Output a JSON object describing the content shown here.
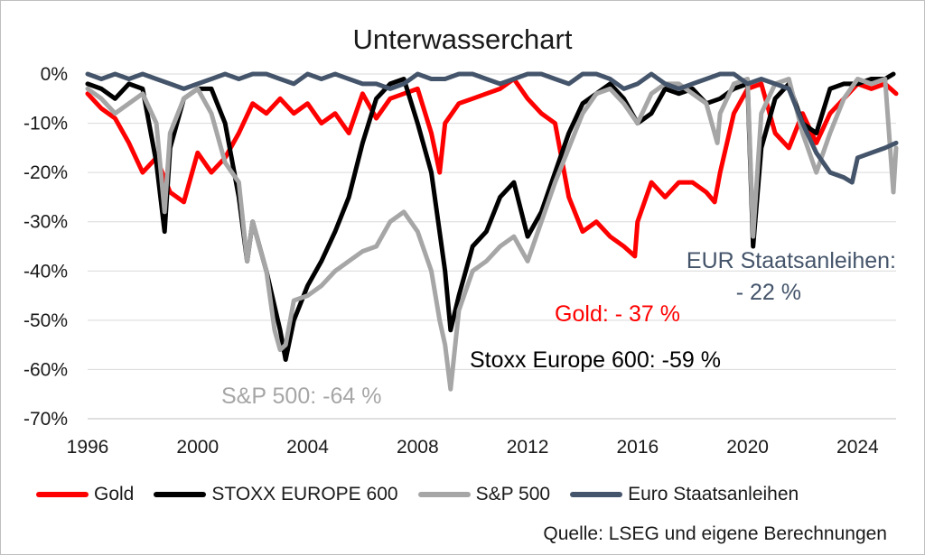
{
  "chart_data": {
    "type": "line",
    "title": "Unterwasserchart",
    "xlabel": "",
    "ylabel": "",
    "xlim": [
      1996,
      2025.4
    ],
    "ylim": [
      -70,
      0
    ],
    "x_ticks": [
      "1996",
      "2000",
      "2004",
      "2008",
      "2012",
      "2016",
      "2020",
      "2024"
    ],
    "y_ticks": [
      "0%",
      "-10%",
      "-20%",
      "-30%",
      "-40%",
      "-50%",
      "-60%",
      "-70%"
    ],
    "grid": "horizontal",
    "legend_position": "bottom",
    "series": [
      {
        "name": "Gold",
        "color": "#ff0000",
        "points": [
          [
            1996,
            -4
          ],
          [
            1996.5,
            -7
          ],
          [
            1997,
            -9
          ],
          [
            1997.5,
            -14
          ],
          [
            1998,
            -20
          ],
          [
            1998.5,
            -17
          ],
          [
            1999,
            -24
          ],
          [
            1999.5,
            -26
          ],
          [
            2000,
            -16
          ],
          [
            2000.5,
            -20
          ],
          [
            2001,
            -17
          ],
          [
            2001.5,
            -12
          ],
          [
            2002,
            -6
          ],
          [
            2002.5,
            -8
          ],
          [
            2003,
            -5
          ],
          [
            2003.5,
            -8
          ],
          [
            2004,
            -6
          ],
          [
            2004.5,
            -10
          ],
          [
            2005,
            -8
          ],
          [
            2005.5,
            -12
          ],
          [
            2006,
            -4
          ],
          [
            2006.5,
            -9
          ],
          [
            2007,
            -5
          ],
          [
            2007.5,
            -4
          ],
          [
            2008,
            -3
          ],
          [
            2008.5,
            -12
          ],
          [
            2008.8,
            -20
          ],
          [
            2009,
            -10
          ],
          [
            2009.5,
            -6
          ],
          [
            2010,
            -5
          ],
          [
            2010.5,
            -4
          ],
          [
            2011,
            -3
          ],
          [
            2011.5,
            -1
          ],
          [
            2012,
            -5
          ],
          [
            2012.5,
            -8
          ],
          [
            2013,
            -10
          ],
          [
            2013.5,
            -25
          ],
          [
            2014,
            -32
          ],
          [
            2014.5,
            -30
          ],
          [
            2015,
            -33
          ],
          [
            2015.5,
            -35
          ],
          [
            2015.9,
            -37
          ],
          [
            2016,
            -30
          ],
          [
            2016.5,
            -22
          ],
          [
            2017,
            -25
          ],
          [
            2017.5,
            -22
          ],
          [
            2018,
            -22
          ],
          [
            2018.5,
            -24
          ],
          [
            2018.8,
            -26
          ],
          [
            2019,
            -20
          ],
          [
            2019.5,
            -8
          ],
          [
            2020,
            -3
          ],
          [
            2020.5,
            -2
          ],
          [
            2021,
            -12
          ],
          [
            2021.5,
            -15
          ],
          [
            2022,
            -8
          ],
          [
            2022.5,
            -14
          ],
          [
            2023,
            -8
          ],
          [
            2023.5,
            -5
          ],
          [
            2024,
            -2
          ],
          [
            2024.5,
            -3
          ],
          [
            2025,
            -2
          ],
          [
            2025.4,
            -4
          ]
        ]
      },
      {
        "name": "STOXX EUROPE 600",
        "color": "#000000",
        "points": [
          [
            1996,
            -2
          ],
          [
            1996.5,
            -3
          ],
          [
            1997,
            -5
          ],
          [
            1997.5,
            -2
          ],
          [
            1998,
            -3
          ],
          [
            1998.5,
            -18
          ],
          [
            1998.8,
            -32
          ],
          [
            1999,
            -15
          ],
          [
            1999.5,
            -5
          ],
          [
            2000,
            -3
          ],
          [
            2000.5,
            -3
          ],
          [
            2001,
            -10
          ],
          [
            2001.5,
            -25
          ],
          [
            2001.8,
            -38
          ],
          [
            2002,
            -30
          ],
          [
            2002.5,
            -40
          ],
          [
            2003,
            -52
          ],
          [
            2003.2,
            -58
          ],
          [
            2003.5,
            -50
          ],
          [
            2004,
            -43
          ],
          [
            2004.5,
            -38
          ],
          [
            2005,
            -32
          ],
          [
            2005.5,
            -25
          ],
          [
            2006,
            -14
          ],
          [
            2006.5,
            -5
          ],
          [
            2007,
            -2
          ],
          [
            2007.5,
            -1
          ],
          [
            2008,
            -10
          ],
          [
            2008.5,
            -20
          ],
          [
            2009,
            -40
          ],
          [
            2009.2,
            -52
          ],
          [
            2009.5,
            -45
          ],
          [
            2010,
            -35
          ],
          [
            2010.5,
            -32
          ],
          [
            2011,
            -25
          ],
          [
            2011.5,
            -22
          ],
          [
            2012,
            -33
          ],
          [
            2012.5,
            -28
          ],
          [
            2013,
            -20
          ],
          [
            2013.5,
            -12
          ],
          [
            2014,
            -6
          ],
          [
            2014.5,
            -4
          ],
          [
            2015,
            -2
          ],
          [
            2015.5,
            -5
          ],
          [
            2016,
            -10
          ],
          [
            2016.5,
            -8
          ],
          [
            2017,
            -3
          ],
          [
            2017.5,
            -4
          ],
          [
            2018,
            -3
          ],
          [
            2018.5,
            -6
          ],
          [
            2019,
            -5
          ],
          [
            2019.5,
            -3
          ],
          [
            2020,
            -2
          ],
          [
            2020.2,
            -35
          ],
          [
            2020.5,
            -15
          ],
          [
            2021,
            -5
          ],
          [
            2021.5,
            -2
          ],
          [
            2022,
            -10
          ],
          [
            2022.5,
            -12
          ],
          [
            2023,
            -3
          ],
          [
            2023.5,
            -2
          ],
          [
            2024,
            -2
          ],
          [
            2024.5,
            -1
          ],
          [
            2025,
            -1
          ],
          [
            2025.3,
            0
          ]
        ]
      },
      {
        "name": "S&P 500",
        "color": "#a6a6a6",
        "points": [
          [
            1996,
            -3
          ],
          [
            1996.5,
            -5
          ],
          [
            1997,
            -8
          ],
          [
            1997.5,
            -6
          ],
          [
            1998,
            -4
          ],
          [
            1998.5,
            -10
          ],
          [
            1998.8,
            -28
          ],
          [
            1999,
            -12
          ],
          [
            1999.5,
            -5
          ],
          [
            2000,
            -3
          ],
          [
            2000.5,
            -8
          ],
          [
            2001,
            -18
          ],
          [
            2001.5,
            -22
          ],
          [
            2001.8,
            -38
          ],
          [
            2002,
            -30
          ],
          [
            2002.5,
            -40
          ],
          [
            2002.8,
            -52
          ],
          [
            2003,
            -56
          ],
          [
            2003.2,
            -55
          ],
          [
            2003.5,
            -46
          ],
          [
            2004,
            -45
          ],
          [
            2004.5,
            -43
          ],
          [
            2005,
            -40
          ],
          [
            2005.5,
            -38
          ],
          [
            2006,
            -36
          ],
          [
            2006.5,
            -35
          ],
          [
            2007,
            -30
          ],
          [
            2007.5,
            -28
          ],
          [
            2008,
            -32
          ],
          [
            2008.5,
            -40
          ],
          [
            2008.8,
            -50
          ],
          [
            2009,
            -55
          ],
          [
            2009.2,
            -64
          ],
          [
            2009.5,
            -48
          ],
          [
            2010,
            -40
          ],
          [
            2010.5,
            -38
          ],
          [
            2011,
            -35
          ],
          [
            2011.5,
            -33
          ],
          [
            2012,
            -38
          ],
          [
            2012.5,
            -30
          ],
          [
            2013,
            -22
          ],
          [
            2013.5,
            -15
          ],
          [
            2014,
            -8
          ],
          [
            2014.5,
            -4
          ],
          [
            2015,
            -3
          ],
          [
            2015.5,
            -6
          ],
          [
            2016,
            -10
          ],
          [
            2016.5,
            -4
          ],
          [
            2017,
            -2
          ],
          [
            2017.5,
            -2
          ],
          [
            2018,
            -4
          ],
          [
            2018.5,
            -6
          ],
          [
            2018.9,
            -14
          ],
          [
            2019,
            -8
          ],
          [
            2019.5,
            -2
          ],
          [
            2020,
            -1
          ],
          [
            2020.2,
            -33
          ],
          [
            2020.5,
            -8
          ],
          [
            2021,
            -2
          ],
          [
            2021.5,
            -1
          ],
          [
            2022,
            -12
          ],
          [
            2022.5,
            -20
          ],
          [
            2023,
            -12
          ],
          [
            2023.5,
            -5
          ],
          [
            2024,
            -1
          ],
          [
            2024.5,
            -2
          ],
          [
            2025,
            -1
          ],
          [
            2025.3,
            -24
          ],
          [
            2025.4,
            -15
          ]
        ]
      },
      {
        "name": "Euro Staatsanleihen",
        "color": "#44546a",
        "points": [
          [
            1996,
            0
          ],
          [
            1996.5,
            -1
          ],
          [
            1997,
            0
          ],
          [
            1997.5,
            -1
          ],
          [
            1998,
            0
          ],
          [
            1998.5,
            -1
          ],
          [
            1999,
            -2
          ],
          [
            1999.5,
            -3
          ],
          [
            2000,
            -2
          ],
          [
            2000.5,
            -1
          ],
          [
            2001,
            0
          ],
          [
            2001.5,
            -1
          ],
          [
            2002,
            0
          ],
          [
            2002.5,
            0
          ],
          [
            2003,
            -1
          ],
          [
            2003.5,
            -2
          ],
          [
            2004,
            0
          ],
          [
            2004.5,
            -1
          ],
          [
            2005,
            0
          ],
          [
            2005.5,
            -1
          ],
          [
            2006,
            -2
          ],
          [
            2006.5,
            -2
          ],
          [
            2007,
            -3
          ],
          [
            2007.5,
            -2
          ],
          [
            2008,
            0
          ],
          [
            2008.5,
            -1
          ],
          [
            2009,
            -1
          ],
          [
            2009.5,
            0
          ],
          [
            2010,
            0
          ],
          [
            2010.5,
            -1
          ],
          [
            2011,
            -2
          ],
          [
            2011.5,
            -1
          ],
          [
            2012,
            0
          ],
          [
            2012.5,
            0
          ],
          [
            2013,
            -1
          ],
          [
            2013.5,
            -2
          ],
          [
            2014,
            0
          ],
          [
            2014.5,
            0
          ],
          [
            2015,
            -1
          ],
          [
            2015.5,
            -3
          ],
          [
            2016,
            -2
          ],
          [
            2016.5,
            0
          ],
          [
            2017,
            -2
          ],
          [
            2017.5,
            -3
          ],
          [
            2018,
            -2
          ],
          [
            2018.5,
            -1
          ],
          [
            2019,
            0
          ],
          [
            2019.5,
            0
          ],
          [
            2020,
            -2
          ],
          [
            2020.5,
            -1
          ],
          [
            2021,
            -2
          ],
          [
            2021.5,
            -3
          ],
          [
            2022,
            -10
          ],
          [
            2022.5,
            -16
          ],
          [
            2023,
            -20
          ],
          [
            2023.5,
            -21
          ],
          [
            2023.8,
            -22
          ],
          [
            2024,
            -17
          ],
          [
            2024.5,
            -16
          ],
          [
            2025,
            -15
          ],
          [
            2025.4,
            -14
          ]
        ]
      }
    ],
    "annotations": [
      {
        "text": "EUR Staatsanleihen:",
        "color": "#44546a"
      },
      {
        "text": "- 22 %",
        "color": "#44546a"
      },
      {
        "text": "Gold: - 37 %",
        "color": "#ff0000"
      },
      {
        "text": "Stoxx Europe 600: -59 %",
        "color": "#000000"
      },
      {
        "text": "S&P 500: -64 %",
        "color": "#a6a6a6"
      }
    ],
    "source": "Quelle: LSEG und eigene Berechnungen"
  }
}
